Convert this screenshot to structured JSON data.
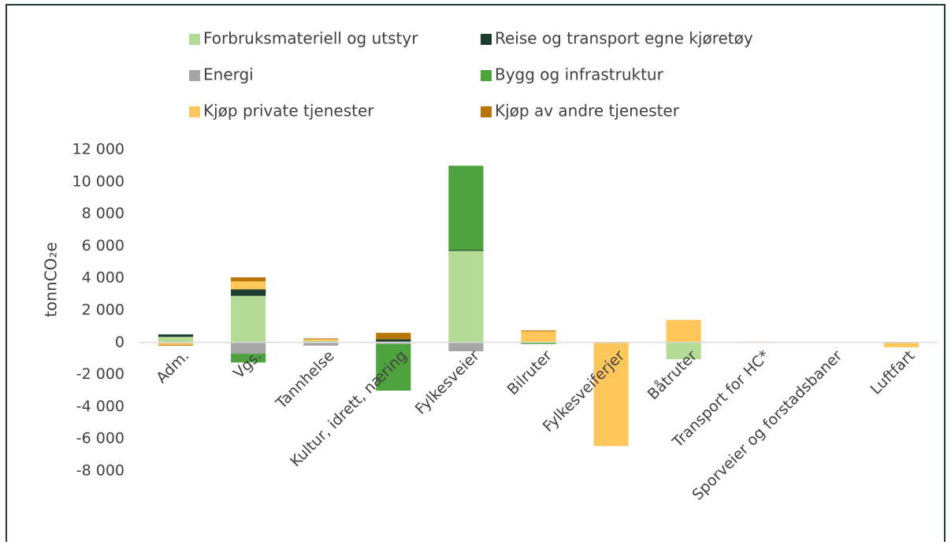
{
  "chart_data": {
    "type": "bar",
    "stacked": true,
    "y_label": "tonnCO₂e",
    "categories": [
      "Adm.",
      "Vgs.",
      "Tannhelse",
      "Kultur, idrett, næring",
      "Fylkesveier",
      "Bilruter",
      "Fylkesveiferjer",
      "Båtruter",
      "Transport for HC*",
      "Sporveier og forstadsbaner",
      "Luftfart"
    ],
    "series": [
      {
        "name": "Forbruksmateriell og utstyr",
        "color": "#b5dc96",
        "values": [
          350,
          2900,
          100,
          50,
          5700,
          0,
          0,
          -1050,
          0,
          0,
          0
        ]
      },
      {
        "name": "Reise og transport egne kjøretøy",
        "color": "#1e3d2f",
        "values": [
          150,
          400,
          0,
          150,
          50,
          0,
          0,
          0,
          0,
          0,
          0
        ]
      },
      {
        "name": "Energi",
        "color": "#a6a6a6",
        "values": [
          -50,
          -700,
          -200,
          -100,
          -550,
          0,
          0,
          0,
          0,
          0,
          0
        ]
      },
      {
        "name": "Bygg og infrastruktur",
        "color": "#4ea33e",
        "values": [
          0,
          -550,
          0,
          -2900,
          5250,
          -100,
          0,
          0,
          0,
          0,
          0
        ]
      },
      {
        "name": "Kjøp private tjenester",
        "color": "#ffc65c",
        "values": [
          -100,
          500,
          100,
          0,
          0,
          700,
          -6450,
          1400,
          50,
          0,
          -300
        ]
      },
      {
        "name": "Kjøp av andre tjenester",
        "color": "#b87400",
        "values": [
          -50,
          250,
          50,
          400,
          0,
          50,
          0,
          0,
          0,
          0,
          0
        ]
      }
    ],
    "ylim": [
      -8000,
      12000
    ],
    "yticks": [
      {
        "value": -8000,
        "label": "-8 000"
      },
      {
        "value": -6000,
        "label": "-6 000"
      },
      {
        "value": -4000,
        "label": "-4 000"
      },
      {
        "value": -2000,
        "label": "-2 000"
      },
      0,
      {
        "value": 2000,
        "label": "2 000"
      },
      {
        "value": 4000,
        "label": "4 000"
      },
      {
        "value": 6000,
        "label": "6 000"
      },
      {
        "value": 8000,
        "label": "8 000"
      },
      {
        "value": 10000,
        "label": "10 000"
      },
      {
        "value": 12000,
        "label": "12 000"
      }
    ],
    "grid": false,
    "legend": "top"
  }
}
